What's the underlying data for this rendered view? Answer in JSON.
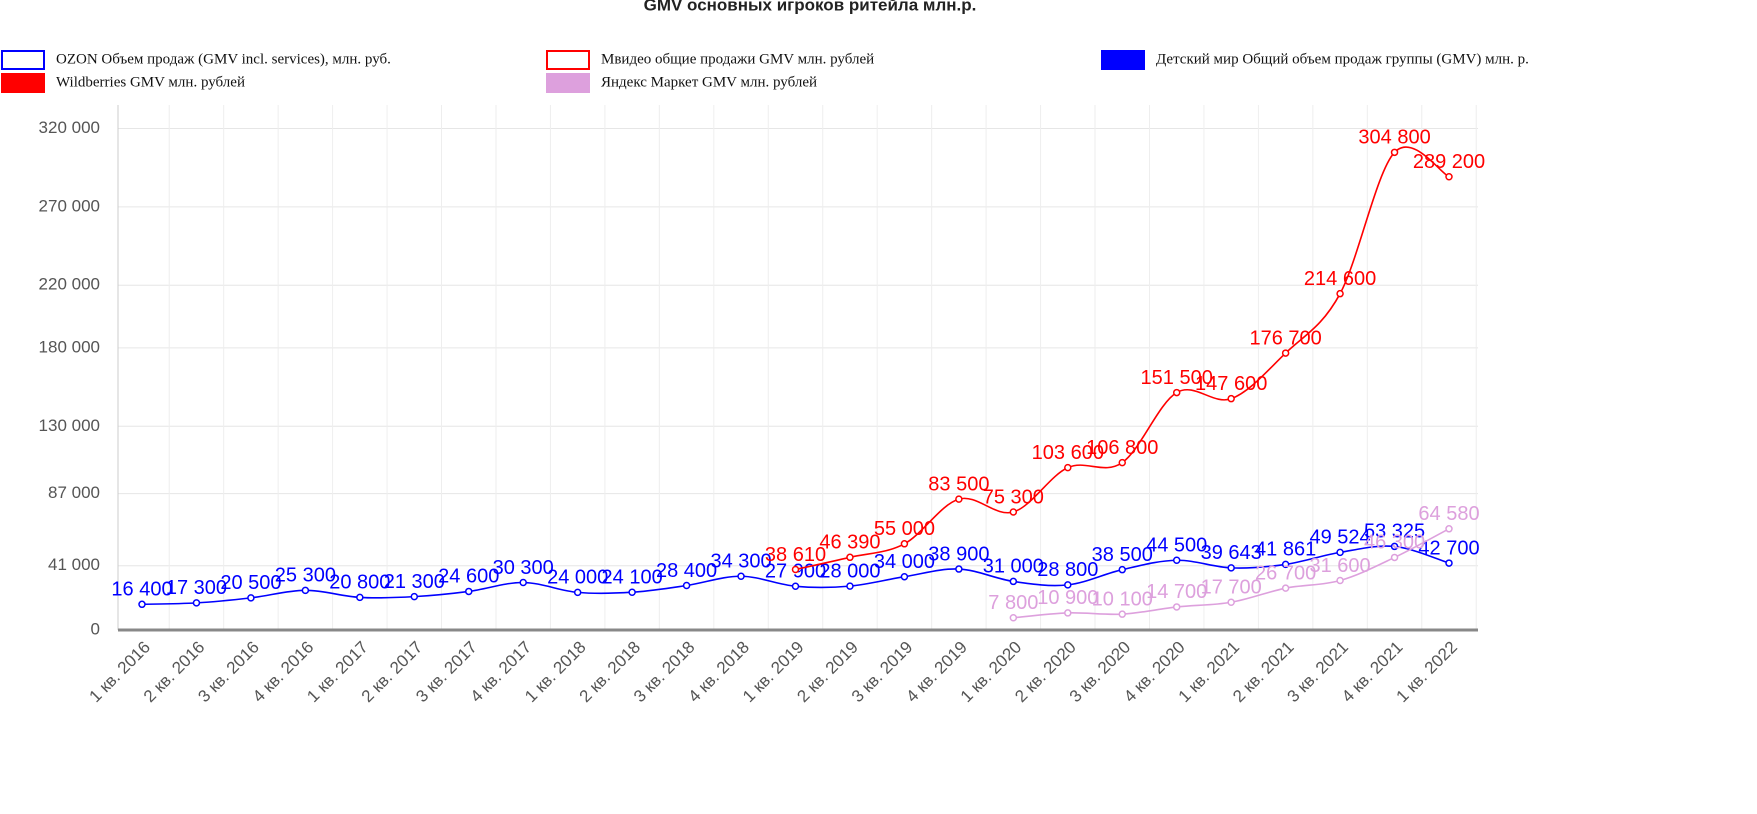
{
  "chart_data": {
    "type": "line",
    "title": "GMV основных игроков ритейла млн.р.",
    "categories": [
      "1 кв. 2016",
      "2 кв. 2016",
      "3 кв. 2016",
      "4 кв. 2016",
      "1 кв. 2017",
      "2 кв. 2017",
      "3 кв. 2017",
      "4 кв. 2017",
      "1 кв. 2018",
      "2 кв. 2018",
      "3 кв. 2018",
      "4 кв. 2018",
      "1 кв. 2019",
      "2 кв. 2019",
      "3 кв. 2019",
      "4 кв. 2019",
      "1 кв. 2020",
      "2 кв. 2020",
      "3 кв. 2020",
      "4 кв. 2020",
      "1 кв. 2021",
      "2 кв. 2021",
      "3 кв. 2021",
      "4 кв. 2021",
      "1 кв. 2022"
    ],
    "series": [
      {
        "name": "OZON Объем продаж (GMV incl. services), млн. руб.",
        "color": "#0000ff",
        "values": [
          null,
          null,
          null,
          null,
          null,
          null,
          null,
          null,
          null,
          null,
          null,
          null,
          null,
          null,
          null,
          null,
          null,
          null,
          null,
          null,
          null,
          null,
          null,
          null,
          null
        ]
      },
      {
        "name": "Мвидео общие продажи GMV млн. рублей",
        "color": "#ff0000",
        "values": [
          null,
          null,
          null,
          null,
          null,
          null,
          null,
          null,
          null,
          null,
          null,
          null,
          null,
          null,
          null,
          null,
          null,
          null,
          null,
          null,
          null,
          null,
          null,
          null,
          null
        ]
      },
      {
        "name": "Детский мир Общий объем продаж группы (GMV) млн. р.",
        "color": "#0000ff",
        "values": [
          16400,
          17300,
          20500,
          25300,
          20800,
          21300,
          24600,
          30300,
          24000,
          24100,
          28400,
          34300,
          27900,
          28000,
          34000,
          38900,
          31000,
          28800,
          38500,
          44500,
          39643,
          41861,
          49524,
          53325,
          42700
        ],
        "value_labels": [
          "16 400",
          "17 300",
          "20 500",
          "25 300",
          "20 800",
          "21 300",
          "24 600",
          "30 300",
          "24 000",
          "24 100",
          "28 400",
          "34 300",
          "27 900",
          "28 000",
          "34 000",
          "38 900",
          "31 000",
          "28 800",
          "38 500",
          "44 500",
          "39 643",
          "41 861",
          "49 524",
          "53 325",
          "42 700"
        ]
      },
      {
        "name": "Wildberries GMV млн. рублей",
        "color": "#ff0000",
        "values": [
          null,
          null,
          null,
          null,
          null,
          null,
          null,
          null,
          null,
          null,
          null,
          null,
          38610,
          46390,
          55000,
          83500,
          75300,
          103600,
          106800,
          151500,
          147600,
          176700,
          214600,
          304800,
          289200
        ],
        "value_labels": [
          null,
          null,
          null,
          null,
          null,
          null,
          null,
          null,
          null,
          null,
          null,
          null,
          "38 610",
          "46 390",
          "55 000",
          "83 500",
          "75 300",
          "103 600",
          "106 800",
          "151 500",
          "147 600",
          "176 700",
          "214 600",
          "304 800",
          "289 200"
        ]
      },
      {
        "name": "Яндекс Маркет GMV млн. рублей",
        "color": "#dda0dd",
        "values": [
          null,
          null,
          null,
          null,
          null,
          null,
          null,
          null,
          null,
          null,
          null,
          null,
          null,
          null,
          null,
          null,
          7800,
          10900,
          10100,
          14700,
          17700,
          26700,
          31600,
          46300,
          64580
        ],
        "value_labels": [
          null,
          null,
          null,
          null,
          null,
          null,
          null,
          null,
          null,
          null,
          null,
          null,
          null,
          null,
          null,
          null,
          "7 800",
          "10 900",
          "10 100",
          "14 700",
          "17 700",
          "26 700",
          "31 600",
          "46 300",
          "64 580"
        ]
      }
    ],
    "ylim": [
      0,
      335000
    ],
    "yticks": [
      0,
      {
        "value": 41000,
        "label": "41 000"
      },
      {
        "value": 87000,
        "label": "87 000"
      },
      {
        "value": 130000,
        "label": "130 000"
      },
      {
        "value": 180000,
        "label": "180 000"
      },
      {
        "value": 220000,
        "label": "220 000"
      },
      {
        "value": 270000,
        "label": "270 000"
      },
      {
        "value": 320000,
        "label": "320 000"
      }
    ],
    "grid": true
  }
}
